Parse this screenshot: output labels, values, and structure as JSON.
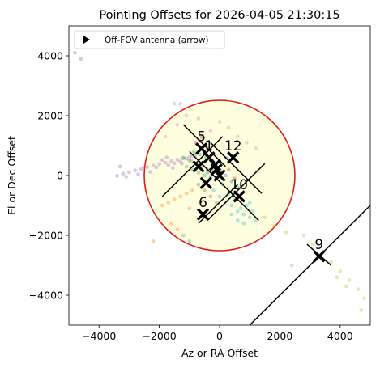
{
  "chart_data": {
    "type": "scatter",
    "title": "Pointing Offsets for 2026-04-05 21:30:15",
    "xlabel": "Az or RA Offset",
    "ylabel": "El or Dec Offset",
    "xlim": [
      -5000,
      5000
    ],
    "ylim": [
      -5000,
      5000
    ],
    "x_ticks": [
      -4000,
      -2000,
      0,
      2000,
      4000
    ],
    "y_ticks": [
      -4000,
      -2000,
      0,
      2000,
      4000
    ],
    "x_tick_labels": [
      "−4000",
      "−2000",
      "0",
      "2000",
      "4000"
    ],
    "y_tick_labels": [
      "−4000",
      "−2000",
      "0",
      "2000",
      "4000"
    ],
    "legend": {
      "placement": "top-left",
      "entries": [
        "Off-FOV antenna (arrow)"
      ]
    },
    "fov_circle": {
      "center": [
        0,
        0
      ],
      "radius": 2500,
      "edge_color": "#e31a1c",
      "fill_color": "#ffffe0"
    },
    "antennas": [
      {
        "label": "5",
        "x": -600,
        "y": 900
      },
      {
        "label": "1",
        "x": -350,
        "y": 600
      },
      {
        "label": "12",
        "x": 450,
        "y": 600
      },
      {
        "label": "",
        "x": -700,
        "y": 300
      },
      {
        "label": "",
        "x": -100,
        "y": 200
      },
      {
        "label": "",
        "x": 0,
        "y": 0
      },
      {
        "label": "",
        "x": -450,
        "y": -250
      },
      {
        "label": "",
        "x": -150,
        "y": 350
      },
      {
        "label": "10",
        "x": 650,
        "y": -700
      },
      {
        "label": "6",
        "x": -550,
        "y": -1300
      },
      {
        "label": "9",
        "x": 3300,
        "y": -2700
      }
    ],
    "arrow_line": {
      "x": [
        1000,
        5000
      ],
      "y": [
        -5000,
        -1000
      ]
    },
    "cross_lines": [
      {
        "x": [
          -1200,
          200
        ],
        "y": [
          1700,
          300
        ]
      },
      {
        "x": [
          -1900,
          100
        ],
        "y": [
          -700,
          1300
        ]
      },
      {
        "x": [
          -1000,
          1300
        ],
        "y": [
          800,
          -1500
        ]
      },
      {
        "x": [
          -300,
          1400
        ],
        "y": [
          1100,
          -600
        ]
      },
      {
        "x": [
          -700,
          600
        ],
        "y": [
          -1600,
          -300
        ]
      },
      {
        "x": [
          -400,
          1500
        ],
        "y": [
          -1500,
          400
        ]
      },
      {
        "x": [
          2900,
          3700
        ],
        "y": [
          -2300,
          -3000
        ]
      }
    ],
    "trails": [
      {
        "color": "#9467bd",
        "x": [
          -3400,
          -3200,
          -3000,
          -2800,
          -2600,
          -2400,
          -2200,
          -2000,
          -1800,
          -1600,
          -1400,
          -1200,
          -1000,
          -900,
          -800,
          -1900,
          -2100,
          -1700,
          -1500,
          -1300,
          -1100,
          -3100,
          -2700,
          -2500,
          -1750,
          -950,
          -3300,
          -2300,
          -1550,
          -1250
        ],
        "y": [
          -10,
          60,
          110,
          170,
          220,
          280,
          330,
          380,
          430,
          480,
          530,
          570,
          610,
          650,
          690,
          520,
          270,
          350,
          410,
          470,
          560,
          -40,
          40,
          300,
          600,
          500,
          300,
          120,
          250,
          400
        ]
      },
      {
        "color": "#2ca02c",
        "x": [
          -1200,
          -1000,
          -800,
          -600,
          -400,
          -200,
          0,
          -1100,
          -900,
          -700,
          -500,
          -300,
          -100,
          -850,
          -650,
          -450,
          -250
        ],
        "y": [
          600,
          500,
          400,
          300,
          200,
          150,
          100,
          300,
          200,
          100,
          0,
          -50,
          -100,
          800,
          700,
          600,
          500
        ]
      },
      {
        "color": "#17becf",
        "x": [
          -200,
          0,
          200,
          400,
          600,
          800,
          1000,
          1200,
          300,
          500,
          700,
          900,
          1100,
          100,
          600,
          800,
          400,
          1000
        ],
        "y": [
          -500,
          -700,
          -900,
          -1000,
          -1200,
          -1300,
          -1400,
          -1500,
          -600,
          -800,
          -1100,
          -1000,
          -1200,
          -300,
          -1500,
          -1600,
          -1300,
          -900
        ]
      },
      {
        "color": "#ff7f0e",
        "x": [
          -1900,
          -1700,
          -1500,
          -1300,
          -1100,
          -900,
          -2200,
          -1600,
          -1400,
          -1000
        ],
        "y": [
          -1000,
          -900,
          -800,
          -700,
          -600,
          -500,
          -2200,
          -1600,
          -1800,
          -1100
        ]
      },
      {
        "color": "#bcbd22",
        "x": [
          2800,
          3100,
          3400,
          3700,
          4000,
          4300,
          4600,
          4800,
          2200,
          1800,
          1500,
          4700,
          4200,
          3900
        ],
        "y": [
          -2000,
          -2300,
          -2600,
          -2900,
          -3200,
          -3500,
          -3800,
          -4100,
          -1900,
          -1700,
          -1400,
          -4500,
          -3700,
          -3400
        ]
      },
      {
        "color": "#e377c2",
        "x": [
          -1500,
          -1300,
          -1100,
          -1800,
          -1400,
          -300,
          0,
          300,
          600,
          900,
          1200,
          -600,
          2400,
          -700
        ],
        "y": [
          2400,
          2400,
          2000,
          1300,
          1700,
          1500,
          1800,
          1600,
          1300,
          1100,
          900,
          1200,
          -3000,
          1900
        ]
      },
      {
        "color": "#7f7f7f",
        "x": [
          -4800,
          -4600,
          -1200,
          -1000
        ],
        "y": [
          4100,
          3900,
          -2000,
          -2200
        ]
      },
      {
        "color": "#8c564b",
        "x": [
          -700,
          -500,
          -300,
          -100
        ],
        "y": [
          -300,
          -500,
          -700,
          -900
        ]
      },
      {
        "color": "#1f77b4",
        "x": [
          -200,
          0,
          200,
          400,
          600,
          200,
          -400
        ],
        "y": [
          400,
          200,
          0,
          -200,
          -400,
          600,
          100
        ]
      },
      {
        "color": "#d62728",
        "x": [
          -800,
          -600,
          -400,
          300,
          500
        ],
        "y": [
          1100,
          1300,
          900,
          200,
          -100
        ]
      }
    ]
  }
}
